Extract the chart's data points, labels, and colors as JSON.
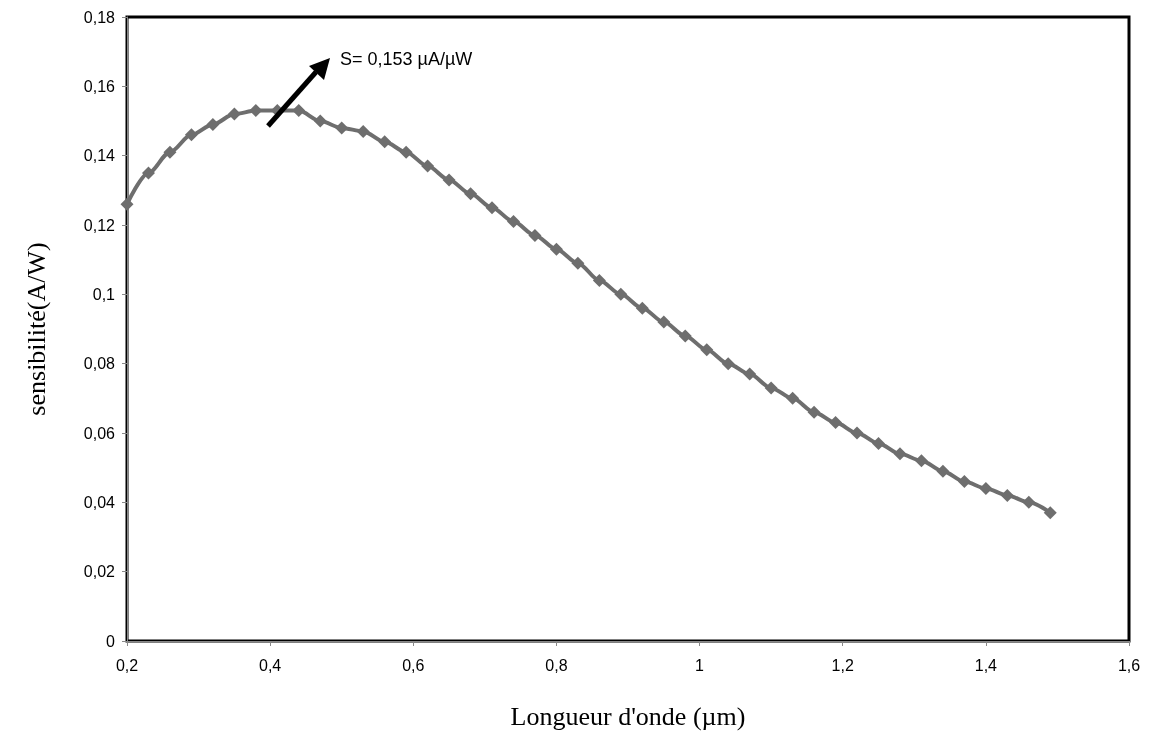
{
  "chart_data": {
    "type": "line",
    "xlabel": "Longueur d'onde (µm)",
    "ylabel": "sensibilité(A/W)",
    "x": [
      0.2,
      0.23,
      0.26,
      0.29,
      0.32,
      0.35,
      0.38,
      0.41,
      0.44,
      0.47,
      0.5,
      0.53,
      0.56,
      0.59,
      0.62,
      0.65,
      0.68,
      0.71,
      0.74,
      0.77,
      0.8,
      0.83,
      0.86,
      0.89,
      0.92,
      0.95,
      0.98,
      1.01,
      1.04,
      1.07,
      1.1,
      1.13,
      1.16,
      1.19,
      1.22,
      1.25,
      1.28,
      1.31,
      1.34,
      1.37,
      1.4,
      1.43,
      1.46,
      1.49
    ],
    "series": [
      {
        "color": "#6e6e6e",
        "values": [
          0.126,
          0.135,
          0.141,
          0.146,
          0.149,
          0.152,
          0.153,
          0.153,
          0.153,
          0.15,
          0.148,
          0.147,
          0.144,
          0.141,
          0.137,
          0.133,
          0.129,
          0.125,
          0.121,
          0.117,
          0.113,
          0.109,
          0.104,
          0.1,
          0.096,
          0.092,
          0.088,
          0.084,
          0.08,
          0.077,
          0.073,
          0.07,
          0.066,
          0.063,
          0.06,
          0.057,
          0.054,
          0.052,
          0.049,
          0.046,
          0.044,
          0.042,
          0.04,
          0.037
        ]
      }
    ],
    "marker": "diamond",
    "line_style": "solid",
    "grid": false,
    "xlim": [
      0.2,
      1.6
    ],
    "xticks": [
      {
        "value": 0.2,
        "label": "0,2"
      },
      {
        "value": 0.4,
        "label": "0,4"
      },
      {
        "value": 0.6,
        "label": "0,6"
      },
      {
        "value": 0.8,
        "label": "0,8"
      },
      1,
      {
        "value": 1.2,
        "label": "1,2"
      },
      {
        "value": 1.4,
        "label": "1,4"
      },
      {
        "value": 1.6,
        "label": "1,6"
      }
    ],
    "ylim": [
      0,
      0.18
    ],
    "yticks": [
      0,
      {
        "value": 0.02,
        "label": "0,02"
      },
      {
        "value": 0.04,
        "label": "0,04"
      },
      {
        "value": 0.06,
        "label": "0,06"
      },
      {
        "value": 0.08,
        "label": "0,08"
      },
      {
        "value": 0.1,
        "label": "0,1"
      },
      {
        "value": 0.12,
        "label": "0,12"
      },
      {
        "value": 0.14,
        "label": "0,14"
      },
      {
        "value": 0.16,
        "label": "0,16"
      },
      {
        "value": 0.18,
        "label": "0,18"
      }
    ],
    "annotations": [
      "S= 0,153 µA/µW"
    ]
  }
}
